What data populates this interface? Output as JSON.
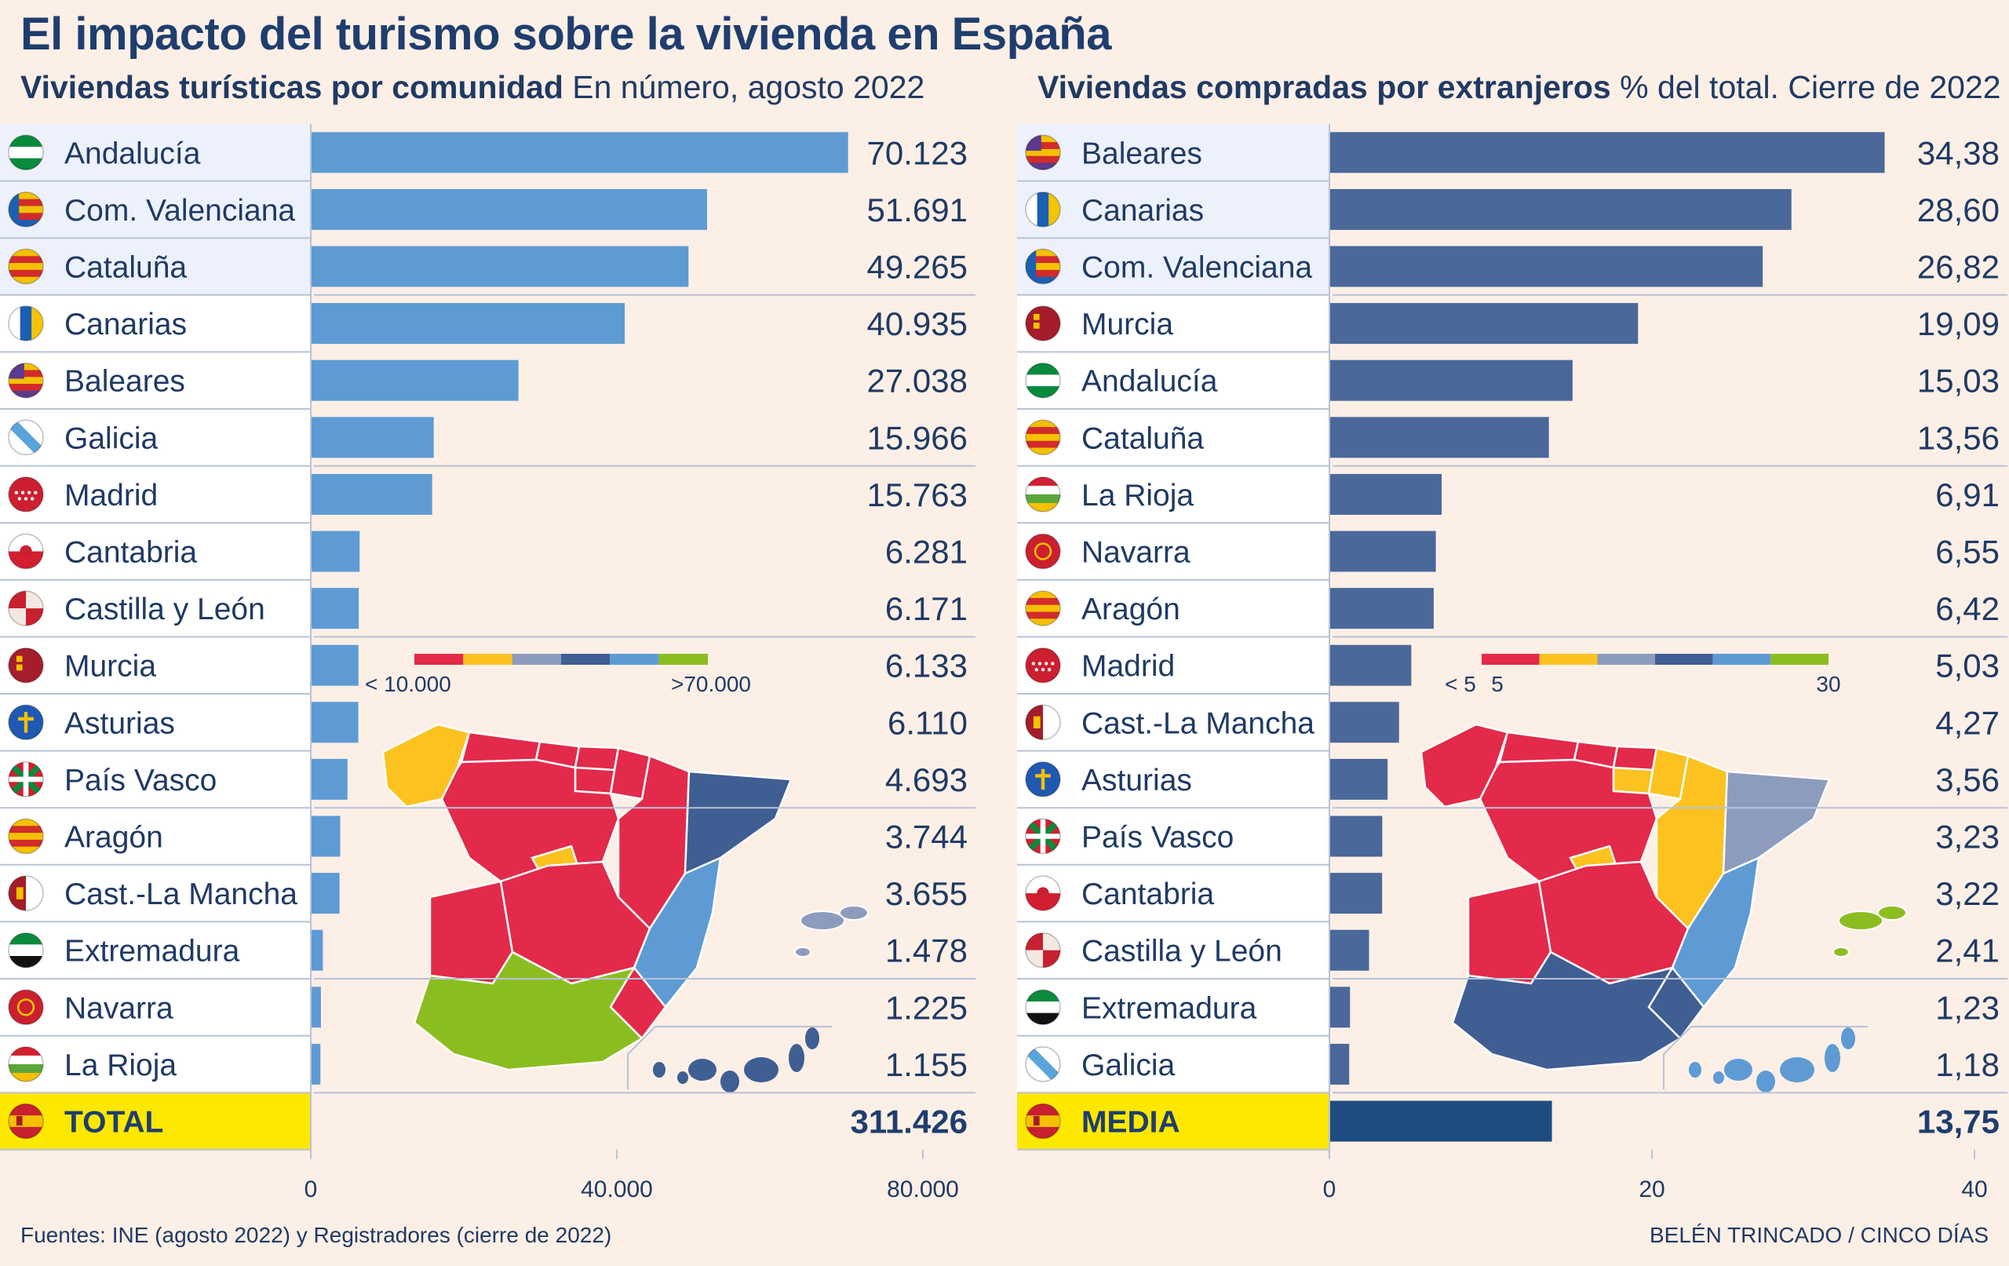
{
  "title": "El impacto del turismo sobre la vivienda en España",
  "left_panel": {
    "subtitle_bold": "Viviendas turísticas por comunidad",
    "subtitle_rest": " En número, agosto 2022",
    "legend_low": "< 10.000",
    "legend_high": ">70.000",
    "legend_colors": [
      "#e32a4a",
      "#fbc220",
      "#8d9cbd",
      "#3f5e92",
      "#5e9bd4",
      "#8cbd20"
    ]
  },
  "right_panel": {
    "subtitle_bold": "Viviendas compradas por extranjeros",
    "subtitle_rest": " % del total. Cierre de 2022",
    "legend_low": "< 5",
    "legend_mid": "5",
    "legend_high": "30",
    "legend_colors": [
      "#e32a4a",
      "#fbc220",
      "#8d9cbd",
      "#3f5e92",
      "#5e9bd4",
      "#8cbd20"
    ]
  },
  "chart_data": [
    {
      "type": "bar",
      "orientation": "horizontal",
      "title": "Viviendas turísticas por comunidad",
      "subtitle": "En número, agosto 2022",
      "xlim": [
        0,
        80000
      ],
      "xticks": [
        "0",
        "40.000",
        "80.000"
      ],
      "bar_color": "#5e9bd4",
      "total_color": "#5e9bd4",
      "categories": [
        "Andalucía",
        "Com. Valenciana",
        "Cataluña",
        "Canarias",
        "Baleares",
        "Galicia",
        "Madrid",
        "Cantabria",
        "Castilla y León",
        "Murcia",
        "Asturias",
        "País Vasco",
        "Aragón",
        "Cast.-La Mancha",
        "Extremadura",
        "Navarra",
        "La Rioja"
      ],
      "values": [
        70123,
        51691,
        49265,
        40935,
        27038,
        15966,
        15763,
        6281,
        6171,
        6133,
        6110,
        4693,
        3744,
        3655,
        1478,
        1225,
        1155
      ],
      "value_labels": [
        "70.123",
        "51.691",
        "49.265",
        "40.935",
        "27.038",
        "15.966",
        "15.763",
        "6.281",
        "6.171",
        "6.133",
        "6.110",
        "4.693",
        "3.744",
        "3.655",
        "1.478",
        "1.225",
        "1.155"
      ],
      "flags": [
        "andalucia",
        "valencia",
        "cataluna",
        "canarias",
        "baleares",
        "galicia",
        "madrid",
        "cantabria",
        "castilla-leon",
        "murcia",
        "asturias",
        "pais-vasco",
        "aragon",
        "castilla-la-mancha",
        "extremadura",
        "navarra",
        "la-rioja"
      ],
      "highlight_rows": 3,
      "total_label": "TOTAL",
      "total_value": 311426,
      "total_value_label": "311.426",
      "total_flag": "espana"
    },
    {
      "type": "bar",
      "orientation": "horizontal",
      "title": "Viviendas compradas por extranjeros",
      "subtitle": "% del total. Cierre de 2022",
      "xlim": [
        0,
        40
      ],
      "xticks": [
        "0",
        "20",
        "40"
      ],
      "bar_color": "#4a6899",
      "total_color": "#1f4c80",
      "categories": [
        "Baleares",
        "Canarias",
        "Com. Valenciana",
        "Murcia",
        "Andalucía",
        "Cataluña",
        "La Rioja",
        "Navarra",
        "Aragón",
        "Madrid",
        "Cast.-La Mancha",
        "Asturias",
        "País Vasco",
        "Cantabria",
        "Castilla y León",
        "Extremadura",
        "Galicia"
      ],
      "values": [
        34.38,
        28.6,
        26.82,
        19.09,
        15.03,
        13.56,
        6.91,
        6.55,
        6.42,
        5.03,
        4.27,
        3.56,
        3.23,
        3.22,
        2.41,
        1.23,
        1.18
      ],
      "value_labels": [
        "34,38",
        "28,60",
        "26,82",
        "19,09",
        "15,03",
        "13,56",
        "6,91",
        "6,55",
        "6,42",
        "5,03",
        "4,27",
        "3,56",
        "3,23",
        "3,22",
        "2,41",
        "1,23",
        "1,18"
      ],
      "flags": [
        "baleares",
        "canarias",
        "valencia",
        "murcia",
        "andalucia",
        "cataluna",
        "la-rioja",
        "navarra",
        "aragon",
        "madrid",
        "castilla-la-mancha",
        "asturias",
        "pais-vasco",
        "cantabria",
        "castilla-leon",
        "extremadura",
        "galicia"
      ],
      "highlight_rows": 3,
      "total_label": "MEDIA",
      "total_value": 13.75,
      "total_value_label": "13,75",
      "total_flag": "espana"
    }
  ],
  "footer": {
    "source": "Fuentes: INE (agosto 2022) y Registradores (cierre de 2022)",
    "credit": "BELÉN TRINCADO / CINCO DÍAS"
  }
}
